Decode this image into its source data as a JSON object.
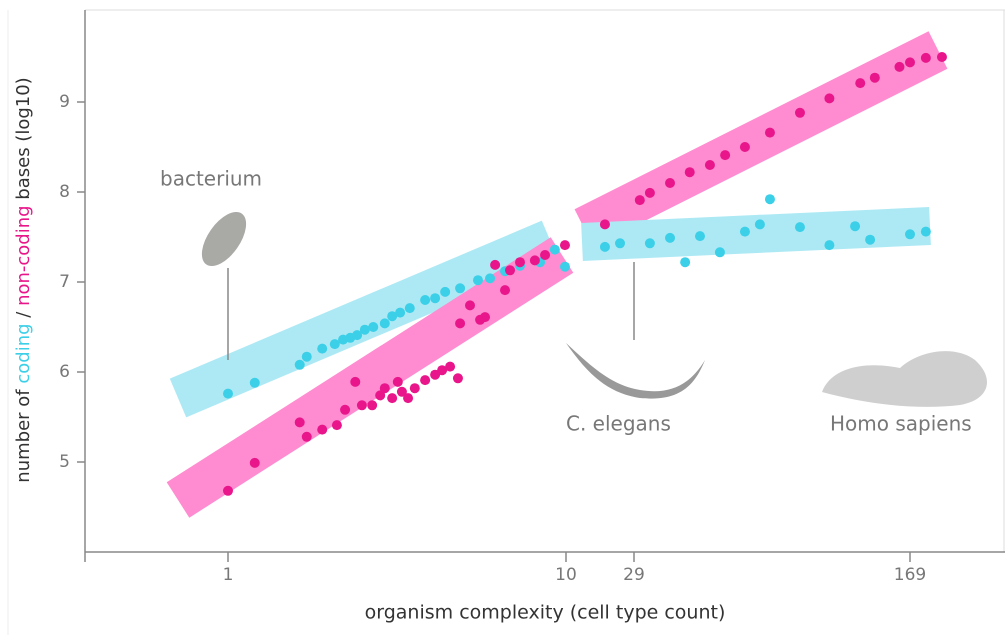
{
  "chart_data": {
    "type": "scatter",
    "y_label_parts": [
      "number of",
      "/",
      "bases (log10)"
    ],
    "x_label": "organism complexity (cell type count)",
    "xscale": "log",
    "xlim": [
      0.4,
      300
    ],
    "xticks": [
      1,
      10,
      29,
      169
    ],
    "ylim": [
      4,
      10
    ],
    "yticks": [
      5,
      6,
      7,
      8,
      9
    ],
    "annotations": [
      "bacterium",
      "C. elegans",
      "Homo sapiens"
    ],
    "series": [
      {
        "name": "coding",
        "color": "#3ccfe8",
        "x": [
          1,
          1.2,
          1.63,
          1.71,
          1.9,
          2.07,
          2.19,
          2.3,
          2.41,
          2.54,
          2.69,
          2.91,
          3.06,
          3.23,
          3.45,
          3.83,
          4.1,
          4.39,
          4.86,
          5.49,
          5.96,
          6.6,
          7.31,
          8.38,
          9.27,
          9.93,
          18.4,
          23.3,
          32.1,
          36.5,
          40.2,
          44.2,
          50.2,
          58.9,
          64.8,
          69.1,
          83.7,
          101,
          119,
          131,
          169,
          186
        ],
        "values": [
          5.76,
          5.88,
          6.08,
          6.17,
          6.26,
          6.31,
          6.36,
          6.38,
          6.41,
          6.47,
          6.5,
          6.54,
          6.62,
          6.66,
          6.71,
          6.8,
          6.82,
          6.89,
          6.93,
          7.02,
          7.04,
          7.12,
          7.18,
          7.22,
          7.36,
          7.17,
          7.39,
          7.43,
          7.43,
          7.49,
          7.22,
          7.51,
          7.33,
          7.56,
          7.64,
          7.92,
          7.61,
          7.41,
          7.62,
          7.47,
          7.53,
          7.56
        ]
      },
      {
        "name": "non-coding",
        "color": "#e8168a",
        "x": [
          1,
          1.2,
          1.63,
          1.71,
          1.9,
          2.1,
          2.22,
          2.38,
          2.49,
          2.67,
          2.82,
          2.91,
          3.06,
          3.18,
          3.27,
          3.41,
          3.57,
          3.83,
          4.1,
          4.3,
          4.54,
          4.79,
          4.86,
          5.2,
          5.57,
          5.76,
          6.17,
          6.6,
          6.83,
          7.31,
          8.09,
          8.67,
          9.93,
          18.4,
          30.1,
          32.1,
          36.5,
          41.4,
          47.1,
          51.9,
          58.9,
          69.1,
          83.7,
          101,
          123,
          135,
          158,
          169,
          186,
          205
        ],
        "values": [
          4.68,
          4.99,
          5.44,
          5.28,
          5.36,
          5.41,
          5.58,
          5.89,
          5.63,
          5.63,
          5.74,
          5.82,
          5.71,
          5.89,
          5.78,
          5.71,
          5.82,
          5.91,
          5.97,
          6.02,
          6.06,
          5.93,
          6.54,
          6.74,
          6.58,
          6.61,
          7.19,
          6.91,
          7.13,
          7.22,
          7.24,
          7.3,
          7.41,
          7.64,
          7.91,
          7.99,
          8.1,
          8.22,
          8.3,
          8.41,
          8.5,
          8.66,
          8.88,
          9.04,
          9.21,
          9.27,
          9.39,
          9.44,
          9.49,
          9.5
        ]
      }
    ]
  }
}
